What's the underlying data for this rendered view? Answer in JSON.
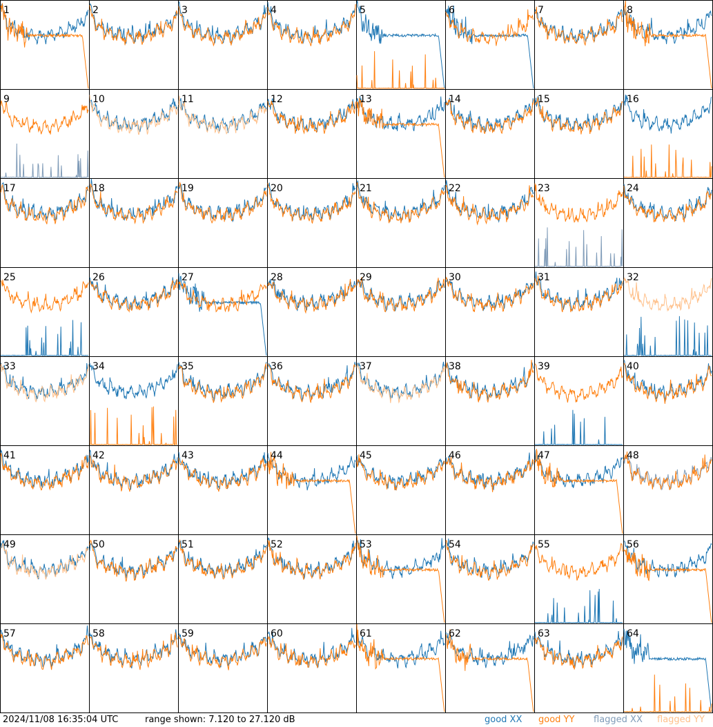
{
  "chart_data": {
    "type": "line",
    "layout": "small-multiples",
    "rows": 8,
    "cols": 8,
    "panels": [
      "1",
      "2",
      "3",
      "4",
      "5",
      "6",
      "7",
      "8",
      "9",
      "10",
      "11",
      "12",
      "13",
      "14",
      "15",
      "16",
      "17",
      "18",
      "19",
      "20",
      "21",
      "22",
      "23",
      "24",
      "25",
      "26",
      "27",
      "28",
      "29",
      "30",
      "31",
      "32",
      "33",
      "34",
      "35",
      "36",
      "37",
      "38",
      "39",
      "40",
      "41",
      "42",
      "43",
      "44",
      "45",
      "46",
      "47",
      "48",
      "49",
      "50",
      "51",
      "52",
      "53",
      "54",
      "55",
      "56",
      "57",
      "58",
      "59",
      "60",
      "61",
      "62",
      "63",
      "64"
    ],
    "ylim": [
      7.12,
      27.12
    ],
    "y_unit": "dB",
    "series": [
      {
        "name": "good XX",
        "color": "#1f77b4"
      },
      {
        "name": "good YY",
        "color": "#ff7f0e"
      },
      {
        "name": "flagged XX",
        "color": "#7f9bb8"
      },
      {
        "name": "flagged YY",
        "color": "#ffc08a"
      }
    ],
    "panel_status": {
      "flagged_xx": [
        "9",
        "23",
        "48"
      ],
      "flagged_yy": [
        "10",
        "11",
        "32",
        "33",
        "37",
        "49"
      ],
      "low_xx_spikes": [
        "9",
        "23",
        "25",
        "32",
        "39",
        "55"
      ],
      "low_yy_spikes": [
        "5",
        "16",
        "34",
        "64"
      ],
      "yy_dropout": [
        "1",
        "8",
        "13",
        "44",
        "47",
        "53",
        "56",
        "61",
        "62"
      ],
      "xx_dropout": [
        "5",
        "6",
        "27",
        "64"
      ]
    },
    "approx_levels_db": {
      "xx_typical": [
        20.5,
        24.5
      ],
      "yy_typical": [
        20.5,
        24.5
      ],
      "spike_floor": 7.12
    }
  },
  "footer": {
    "timestamp": "2024/11/08 16:35:04 UTC",
    "range": "range shown: 7.120 to 27.120 dB",
    "legend": {
      "good_xx": "good XX",
      "good_yy": "good YY",
      "flagged_xx": "flagged XX",
      "flagged_yy": "flagged YY"
    }
  }
}
